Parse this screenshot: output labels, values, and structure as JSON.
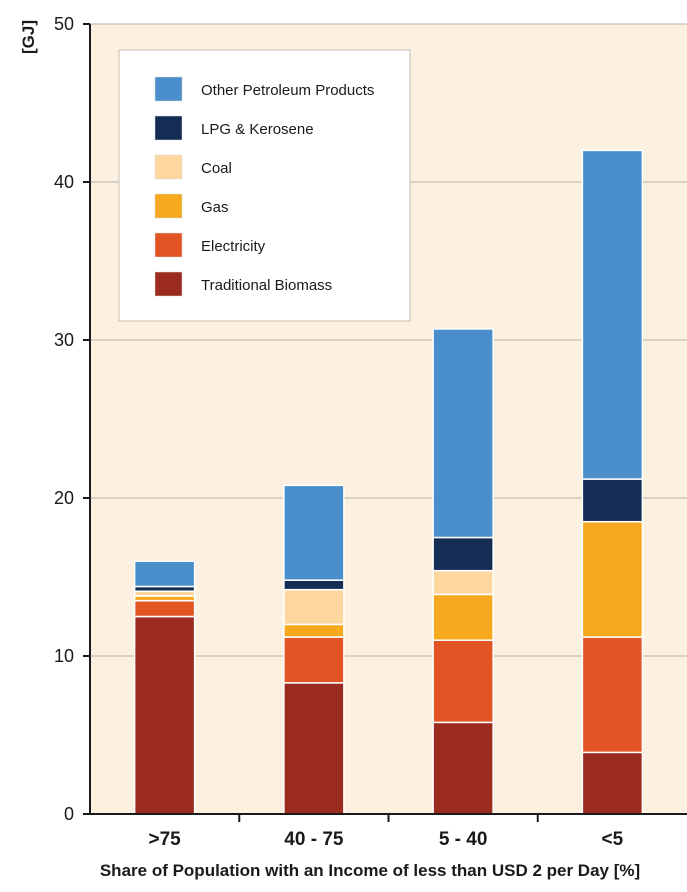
{
  "chart_data": {
    "type": "bar",
    "stacked": true,
    "title": "",
    "xlabel": "Share of Population with an Income of less than USD 2 per Day [%]",
    "ylabel": "[GJ]",
    "categories": [
      ">75",
      "40 - 75",
      "5 - 40",
      "<5"
    ],
    "ylim": [
      0,
      50
    ],
    "yticks": [
      0,
      10,
      20,
      30,
      40,
      50
    ],
    "grid": true,
    "background": "#fcf0e0",
    "legend_position": "top-left",
    "series": [
      {
        "name": "Traditional Biomass",
        "color": "#9c2b1f",
        "values": [
          12.5,
          8.3,
          5.8,
          3.9
        ]
      },
      {
        "name": "Electricity",
        "color": "#e25424",
        "values": [
          1.0,
          2.9,
          5.2,
          7.3
        ]
      },
      {
        "name": "Gas",
        "color": "#f6a81e",
        "values": [
          0.3,
          0.8,
          2.9,
          7.3
        ]
      },
      {
        "name": "Coal",
        "color": "#fdd6a0",
        "values": [
          0.3,
          2.2,
          1.5,
          0.0
        ]
      },
      {
        "name": "LPG & Kerosene",
        "color": "#152c55",
        "values": [
          0.3,
          0.6,
          2.1,
          2.7
        ]
      },
      {
        "name": "Other Petroleum Products",
        "color": "#4a8fcb",
        "values": [
          1.6,
          6.0,
          13.2,
          20.8
        ]
      }
    ]
  }
}
